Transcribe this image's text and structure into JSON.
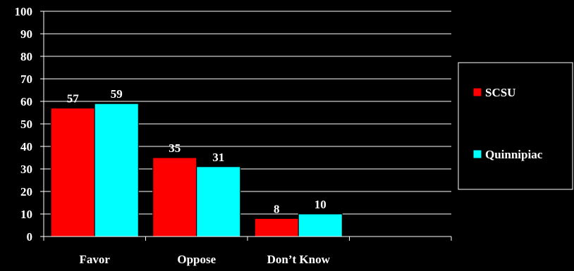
{
  "chart_data": {
    "type": "bar",
    "categories": [
      "Favor",
      "Oppose",
      "Don’t Know",
      ""
    ],
    "series": [
      {
        "name": "SCSU",
        "values": [
          57,
          35,
          8,
          null
        ],
        "color": "#ff0000"
      },
      {
        "name": "Quinnipiac",
        "values": [
          59,
          31,
          10,
          null
        ],
        "color": "#00ffff"
      }
    ],
    "ylim": [
      0,
      100
    ],
    "yticks": [
      0,
      10,
      20,
      30,
      40,
      50,
      60,
      70,
      80,
      90,
      100
    ],
    "grid": true,
    "legend": "right",
    "background": "#000000",
    "axis_color": "#ffffff"
  }
}
